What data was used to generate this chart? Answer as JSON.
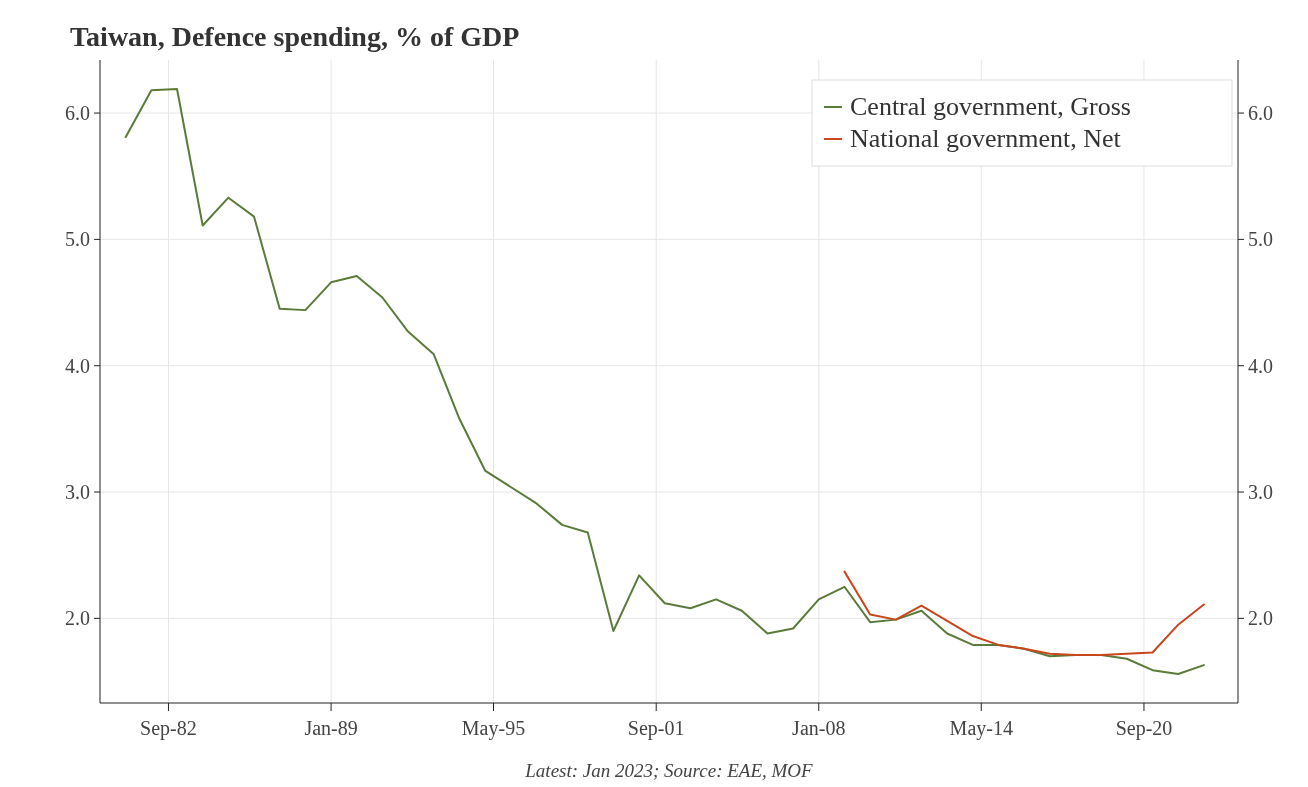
{
  "chart_data": {
    "type": "line",
    "title": "Taiwan, Defence spending, % of GDP",
    "annotations": [
      "Latest: Jan 2023; Source: EAE, MOF"
    ],
    "x": [
      "1981-01",
      "1982-01",
      "1983-01",
      "1984-01",
      "1985-01",
      "1986-01",
      "1987-01",
      "1988-01",
      "1989-01",
      "1990-01",
      "1991-01",
      "1992-01",
      "1993-01",
      "1994-01",
      "1995-01",
      "1996-01",
      "1997-01",
      "1998-01",
      "1999-01",
      "2000-01",
      "2001-01",
      "2002-01",
      "2003-01",
      "2004-01",
      "2005-01",
      "2006-01",
      "2007-01",
      "2008-01",
      "2009-01",
      "2010-01",
      "2011-01",
      "2012-01",
      "2013-01",
      "2014-01",
      "2015-01",
      "2016-01",
      "2017-01",
      "2018-01",
      "2019-01",
      "2020-01",
      "2021-01",
      "2022-01",
      "2023-01"
    ],
    "series": [
      {
        "name": "Central government, Gross",
        "color": "#5b7b3a",
        "values": [
          5.81,
          6.18,
          6.19,
          5.11,
          5.33,
          5.18,
          4.45,
          4.44,
          4.66,
          4.71,
          4.54,
          4.27,
          4.09,
          3.58,
          3.17,
          3.04,
          2.91,
          2.74,
          2.68,
          1.9,
          2.34,
          2.12,
          2.08,
          2.15,
          2.06,
          1.88,
          1.92,
          2.15,
          2.25,
          1.97,
          1.99,
          2.06,
          1.88,
          1.79,
          1.79,
          1.76,
          1.7,
          1.71,
          1.71,
          1.68,
          1.59,
          1.56,
          1.63
        ]
      },
      {
        "name": "National government, Net",
        "color": "#c8471d",
        "values": [
          null,
          null,
          null,
          null,
          null,
          null,
          null,
          null,
          null,
          null,
          null,
          null,
          null,
          null,
          null,
          null,
          null,
          null,
          null,
          null,
          null,
          null,
          null,
          null,
          null,
          null,
          null,
          null,
          2.37,
          2.03,
          1.99,
          2.1,
          1.98,
          1.86,
          1.79,
          1.76,
          1.72,
          1.71,
          1.71,
          1.72,
          1.73,
          1.95,
          2.11
        ]
      }
    ],
    "xlim": [
      "1980-01",
      "2024-05"
    ],
    "xticks": [
      {
        "value": "1982-09",
        "label": "Sep-82"
      },
      {
        "value": "1989-01",
        "label": "Jan-89"
      },
      {
        "value": "1995-05",
        "label": "May-95"
      },
      {
        "value": "2001-09",
        "label": "Sep-01"
      },
      {
        "value": "2008-01",
        "label": "Jan-08"
      },
      {
        "value": "2014-05",
        "label": "May-14"
      },
      {
        "value": "2020-09",
        "label": "Sep-20"
      }
    ],
    "ylim": [
      1.33,
      6.42
    ],
    "yticks": [
      {
        "value": 2,
        "label": "2.0"
      },
      {
        "value": 3,
        "label": "3.0"
      },
      {
        "value": 4,
        "label": "4.0"
      },
      {
        "value": 5,
        "label": "5.0"
      },
      {
        "value": 6,
        "label": "6.0"
      }
    ],
    "y2lim": [
      1.33,
      6.42
    ],
    "y2ticks": [
      {
        "value": 2,
        "label": "2.0"
      },
      {
        "value": 3,
        "label": "3.0"
      },
      {
        "value": 4,
        "label": "4.0"
      },
      {
        "value": 5,
        "label": "5.0"
      },
      {
        "value": 6,
        "label": "6.0"
      }
    ],
    "grid": true,
    "legend": "top right",
    "line_style": "solid",
    "marker": "none"
  }
}
